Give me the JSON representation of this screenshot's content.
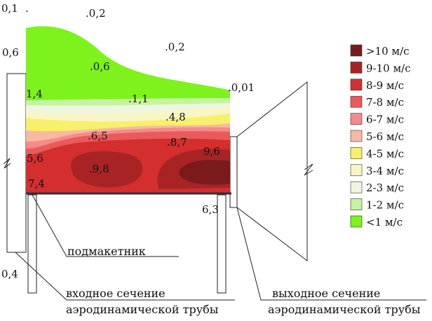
{
  "legend": [
    {
      "label": ">10 м/с",
      "color": "#7a1a1a"
    },
    {
      "label": "9-10 м/с",
      "color": "#a82424"
    },
    {
      "label": "8-9 м/с",
      "color": "#d42e2e"
    },
    {
      "label": "7-8 м/с",
      "color": "#eb5a5a"
    },
    {
      "label": "6-7 м/с",
      "color": "#f58a8a"
    },
    {
      "label": "5-6 м/с",
      "color": "#f8b8a4"
    },
    {
      "label": "4-5 м/с",
      "color": "#f7f06a"
    },
    {
      "label": "3-4 м/с",
      "color": "#f8f6c4"
    },
    {
      "label": "2-3 м/с",
      "color": "#eef6e0"
    },
    {
      "label": "1-2 м/с",
      "color": "#c6f3a2"
    },
    {
      "label": "<1 м/с",
      "color": "#7df21c"
    }
  ],
  "values": {
    "v01": "0,1",
    "v02a": "0,2",
    "v06a": "0,6",
    "v02b": "0,2",
    "v06b": "0,6",
    "v001": "0,01",
    "v14": "1,4",
    "v11": "1,1",
    "v48": "4,8",
    "v65": "6,5",
    "v87": "8,7",
    "v96": "9,6",
    "v56": "5,6",
    "v98": "9,8",
    "v74": "7,4",
    "v63": "6,3",
    "v04": "0,4"
  },
  "captions": {
    "submodel": "подмакетник",
    "inlet_1": "входное сечение",
    "inlet_2": "аэродинамической трубы",
    "outlet_1": "выходное сечение",
    "outlet_2": "аэродинамической трубы"
  }
}
